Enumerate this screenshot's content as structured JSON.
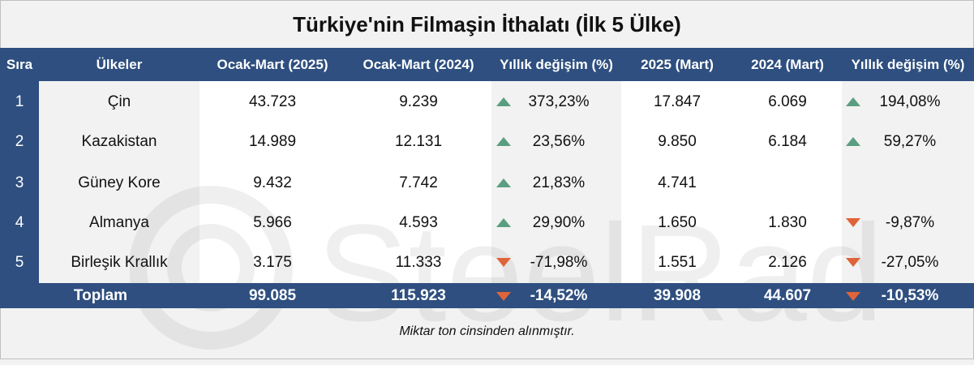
{
  "title": "Türkiye'nin Filmaşin İthalatı (İlk 5 Ülke)",
  "watermark": "SteelRadar",
  "headers": {
    "sira": "Sıra",
    "ulkeler": "Ülkeler",
    "q2025": "Ocak-Mart (2025)",
    "q2024": "Ocak-Mart (2024)",
    "chg1": "Yıllık değişim (%)",
    "m2025": "2025 (Mart)",
    "m2024": "2024 (Mart)",
    "chg2": "Yıllık değişim (%)"
  },
  "rows": [
    {
      "idx": "1",
      "country": "Çin",
      "q2025": "43.723",
      "q2024": "9.239",
      "chg1": "373,23%",
      "chg1_dir": "up",
      "m2025": "17.847",
      "m2024": "6.069",
      "chg2": "194,08%",
      "chg2_dir": "up"
    },
    {
      "idx": "2",
      "country": "Kazakistan",
      "q2025": "14.989",
      "q2024": "12.131",
      "chg1": "23,56%",
      "chg1_dir": "up",
      "m2025": "9.850",
      "m2024": "6.184",
      "chg2": "59,27%",
      "chg2_dir": "up"
    },
    {
      "idx": "3",
      "country": "Güney Kore",
      "q2025": "9.432",
      "q2024": "7.742",
      "chg1": "21,83%",
      "chg1_dir": "up",
      "m2025": "4.741",
      "m2024": "",
      "chg2": "",
      "chg2_dir": ""
    },
    {
      "idx": "4",
      "country": "Almanya",
      "q2025": "5.966",
      "q2024": "4.593",
      "chg1": "29,90%",
      "chg1_dir": "up",
      "m2025": "1.650",
      "m2024": "1.830",
      "chg2": "-9,87%",
      "chg2_dir": "down"
    },
    {
      "idx": "5",
      "country": "Birleşik Krallık",
      "q2025": "3.175",
      "q2024": "11.333",
      "chg1": "-71,98%",
      "chg1_dir": "down",
      "m2025": "1.551",
      "m2024": "2.126",
      "chg2": "-27,05%",
      "chg2_dir": "down"
    }
  ],
  "total": {
    "label": "Toplam",
    "q2025": "99.085",
    "q2024": "115.923",
    "chg1": "-14,52%",
    "chg1_dir": "down",
    "m2025": "39.908",
    "m2024": "44.607",
    "chg2": "-10,53%",
    "chg2_dir": "down"
  },
  "note": "Miktar  ton cinsinden alınmıştır.",
  "colors": {
    "header": "#2e4f7f",
    "up": "#5a9e82",
    "down": "#e0643a",
    "bg_light": "#f2f2f2",
    "bg_white": "#ffffff"
  }
}
